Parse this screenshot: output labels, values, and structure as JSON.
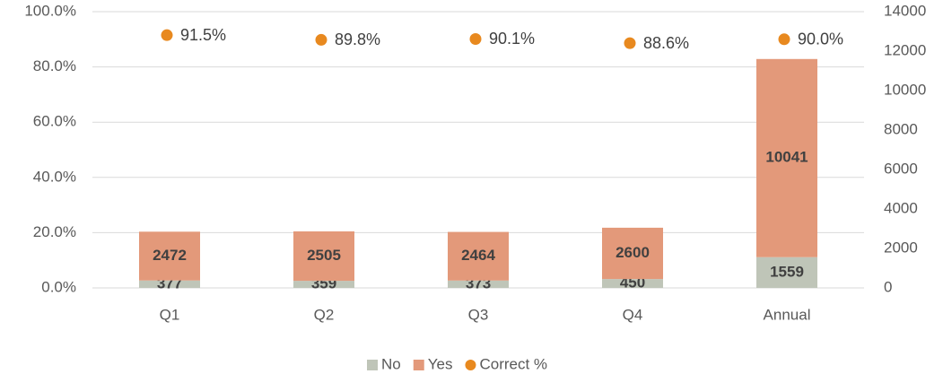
{
  "chart_data": {
    "type": "bar",
    "stacked": true,
    "categories": [
      "Q1",
      "Q2",
      "Q3",
      "Q4",
      "Annual"
    ],
    "series": [
      {
        "name": "No",
        "color": "#bfc5b8",
        "type": "bar",
        "axis": "y2",
        "values": [
          377,
          359,
          373,
          450,
          1559
        ]
      },
      {
        "name": "Yes",
        "color": "#e3997a",
        "type": "bar",
        "axis": "y2",
        "values": [
          2472,
          2505,
          2464,
          2600,
          10041
        ]
      },
      {
        "name": "Correct %",
        "color": "#e8891f",
        "type": "scatter",
        "axis": "y",
        "values": [
          91.5,
          89.8,
          90.1,
          88.6,
          90.0
        ],
        "value_labels": [
          "91.5%",
          "89.8%",
          "90.1%",
          "88.6%",
          "90.0%"
        ]
      }
    ],
    "ylim": [
      0,
      100
    ],
    "yticks": [
      {
        "value": 0,
        "label": "0.0%"
      },
      {
        "value": 20,
        "label": "20.0%"
      },
      {
        "value": 40,
        "label": "40.0%"
      },
      {
        "value": 60,
        "label": "60.0%"
      },
      {
        "value": 80,
        "label": "80.0%"
      },
      {
        "value": 100,
        "label": "100.0%"
      }
    ],
    "y2lim": [
      0,
      14000
    ],
    "y2ticks": [
      0,
      2000,
      4000,
      6000,
      8000,
      10000,
      12000,
      14000
    ],
    "grid": true,
    "legend": "bottom"
  }
}
